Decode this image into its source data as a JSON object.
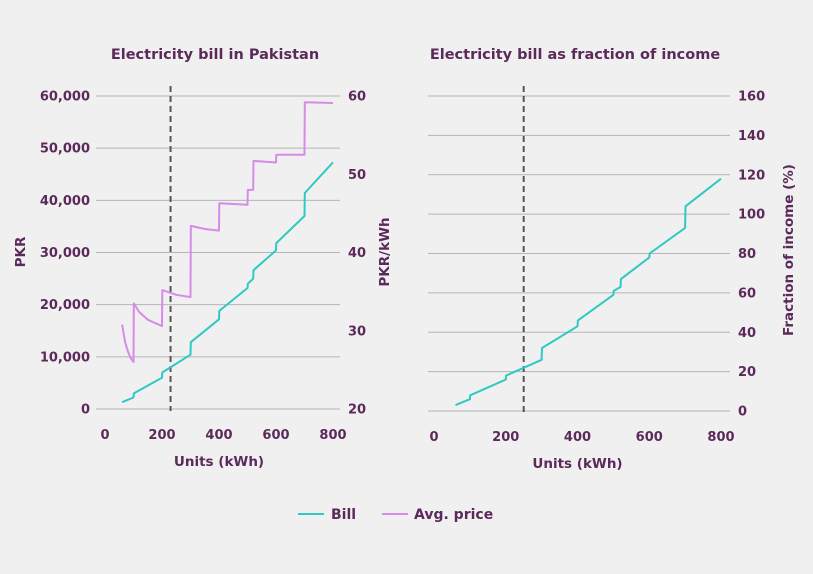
{
  "colors": {
    "bill": "#2ec9c3",
    "avg_price": "#d78be8",
    "text": "#5b2a5a",
    "grid": "#b5b5b5",
    "reference_line": "#555555"
  },
  "legend": [
    {
      "label": "Bill",
      "color": "#2ec9c3"
    },
    {
      "label": "Avg. price",
      "color": "#d78be8"
    }
  ],
  "chart_data": [
    {
      "type": "line",
      "title": "Electricity bill in Pakistan",
      "xlabel": "Units (kWh)",
      "ylabel": "PKR",
      "y2label": "PKR/kWh",
      "xlim": [
        0,
        800
      ],
      "ylim": [
        0,
        60000
      ],
      "y2lim": [
        20,
        60
      ],
      "x_ticks": [
        "0",
        "200",
        "400",
        "600",
        "800"
      ],
      "x_tick_values": [
        0,
        200,
        400,
        600,
        800
      ],
      "y_ticks": [
        "0",
        "10,000",
        "20,000",
        "30,000",
        "40,000",
        "50,000",
        "60,000"
      ],
      "y_tick_values": [
        0,
        10000,
        20000,
        30000,
        40000,
        50000,
        60000
      ],
      "y2_ticks": [
        "20",
        "30",
        "40",
        "50",
        "60"
      ],
      "y2_tick_values": [
        20,
        30,
        40,
        50,
        60
      ],
      "grid": true,
      "reference_line_x": 230,
      "series": [
        {
          "name": "Bill",
          "axis": "left",
          "points": [
            [
              60,
              1300
            ],
            [
              100,
              2200
            ],
            [
              101,
              3000
            ],
            [
              200,
              6000
            ],
            [
              201,
              7000
            ],
            [
              300,
              10400
            ],
            [
              301,
              12800
            ],
            [
              400,
              17200
            ],
            [
              401,
              18800
            ],
            [
              500,
              23200
            ],
            [
              501,
              24000
            ],
            [
              520,
              25000
            ],
            [
              521,
              26600
            ],
            [
              600,
              30400
            ],
            [
              601,
              31800
            ],
            [
              700,
              37000
            ],
            [
              701,
              41400
            ],
            [
              800,
              47300
            ]
          ]
        },
        {
          "name": "Avg. price",
          "axis": "right",
          "points": [
            [
              60,
              30.8
            ],
            [
              70,
              28.6
            ],
            [
              80,
              27.4
            ],
            [
              90,
              26.5
            ],
            [
              100,
              26.0
            ],
            [
              101,
              33.5
            ],
            [
              120,
              32.4
            ],
            [
              150,
              31.4
            ],
            [
              200,
              30.6
            ],
            [
              201,
              35.2
            ],
            [
              250,
              34.6
            ],
            [
              300,
              34.3
            ],
            [
              301,
              43.4
            ],
            [
              350,
              43.0
            ],
            [
              400,
              42.8
            ],
            [
              401,
              46.3
            ],
            [
              450,
              46.2
            ],
            [
              500,
              46.1
            ],
            [
              501,
              48.0
            ],
            [
              520,
              48.0
            ],
            [
              521,
              51.7
            ],
            [
              600,
              51.5
            ],
            [
              601,
              52.5
            ],
            [
              700,
              52.5
            ],
            [
              701,
              59.2
            ],
            [
              800,
              59.1
            ]
          ]
        }
      ]
    },
    {
      "type": "line",
      "title": "Electricity bill as fraction of income",
      "xlabel": "Units (kWh)",
      "ylabel": "Fraction of income (%)",
      "xlim": [
        0,
        800
      ],
      "ylim": [
        0,
        160
      ],
      "x_ticks": [
        "0",
        "200",
        "400",
        "600",
        "800"
      ],
      "x_tick_values": [
        0,
        200,
        400,
        600,
        800
      ],
      "y_ticks": [
        "0",
        "20",
        "40",
        "60",
        "80",
        "100",
        "120",
        "140",
        "160"
      ],
      "y_tick_values": [
        0,
        20,
        40,
        60,
        80,
        100,
        120,
        140,
        160
      ],
      "grid": true,
      "reference_line_x": 250,
      "series": [
        {
          "name": "Bill",
          "points": [
            [
              60,
              3
            ],
            [
              100,
              6
            ],
            [
              101,
              8
            ],
            [
              200,
              16
            ],
            [
              201,
              18
            ],
            [
              300,
              26
            ],
            [
              301,
              32
            ],
            [
              400,
              43
            ],
            [
              401,
              46
            ],
            [
              500,
              59
            ],
            [
              501,
              61
            ],
            [
              520,
              63
            ],
            [
              521,
              67
            ],
            [
              600,
              78
            ],
            [
              601,
              80
            ],
            [
              700,
              93
            ],
            [
              701,
              104
            ],
            [
              800,
              118
            ]
          ]
        }
      ]
    }
  ]
}
